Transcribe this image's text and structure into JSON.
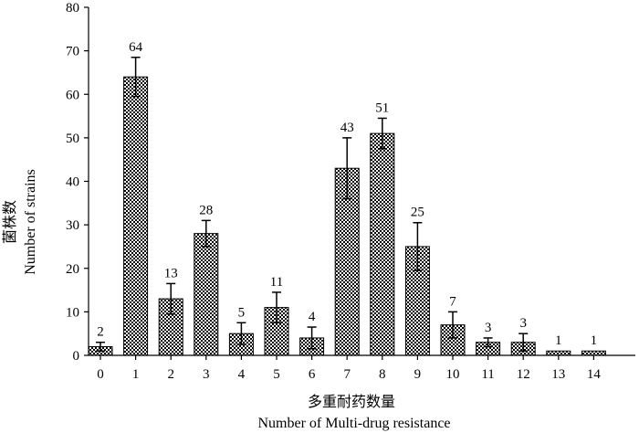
{
  "chart_data": {
    "type": "bar",
    "categories": [
      "0",
      "1",
      "2",
      "3",
      "4",
      "5",
      "6",
      "7",
      "8",
      "9",
      "10",
      "11",
      "12",
      "13",
      "14"
    ],
    "values": [
      2,
      64,
      13,
      28,
      5,
      11,
      4,
      43,
      51,
      25,
      7,
      3,
      3,
      1,
      1
    ],
    "error_upper": [
      1,
      4.5,
      3.5,
      3,
      2.5,
      3.5,
      2.5,
      7,
      3.5,
      5.5,
      3,
      1,
      2,
      0,
      0
    ],
    "error_lower": [
      1,
      4.5,
      3.5,
      3,
      2.5,
      3.5,
      2.5,
      7,
      3.5,
      5.5,
      3,
      1,
      2,
      0,
      0
    ],
    "data_labels": [
      "2",
      "64",
      "13",
      "28",
      "5",
      "11",
      "4",
      "43",
      "51",
      "25",
      "7",
      "3",
      "3",
      "1",
      "1"
    ],
    "ylim": [
      0,
      80
    ],
    "yticks": [
      "0",
      "10",
      "20",
      "30",
      "40",
      "50",
      "60",
      "70",
      "80"
    ],
    "ylabel_cn": "菌株数",
    "ylabel_en": "Number of strains",
    "xlabel_cn": "多重耐药数量",
    "xlabel_en": "Number of Multi-drug resistance",
    "bar_pattern": "checkerboard",
    "grid": false
  }
}
